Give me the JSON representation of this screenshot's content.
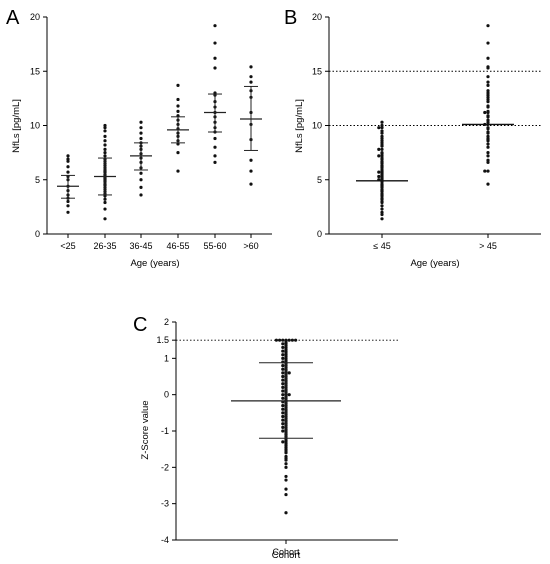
{
  "chart_data": [
    {
      "panel": "A",
      "type": "scatter",
      "xlabel": "Age (years)",
      "ylabel": "NfLs [pg/mL]",
      "ylim": [
        0,
        20
      ],
      "yticks": [
        0,
        5,
        10,
        15,
        20
      ],
      "grid": false,
      "categories": [
        "<25",
        "26-35",
        "36-45",
        "46-55",
        "55-60",
        ">60"
      ],
      "summary": [
        {
          "mean": 4.4,
          "sd_low": 3.3,
          "sd_high": 5.4
        },
        {
          "mean": 5.3,
          "sd_low": 3.6,
          "sd_high": 7.0
        },
        {
          "mean": 7.2,
          "sd_low": 5.9,
          "sd_high": 8.4
        },
        {
          "mean": 9.6,
          "sd_low": 8.4,
          "sd_high": 10.8
        },
        {
          "mean": 11.2,
          "sd_low": 9.4,
          "sd_high": 12.9
        },
        {
          "mean": 10.6,
          "sd_low": 7.7,
          "sd_high": 13.6
        }
      ],
      "points": [
        [
          2.0,
          2.6,
          3.0,
          3.3,
          3.6,
          4.0,
          4.4,
          5.0,
          5.3,
          5.7,
          6.2,
          6.7,
          6.9,
          7.2
        ],
        [
          1.4,
          2.3,
          2.9,
          3.2,
          3.5,
          3.7,
          3.9,
          4.1,
          4.3,
          4.5,
          4.6,
          4.8,
          4.9,
          5.0,
          5.1,
          5.2,
          5.3,
          5.4,
          5.5,
          5.7,
          5.8,
          5.9,
          6.1,
          6.3,
          6.5,
          6.7,
          6.9,
          7.2,
          7.5,
          7.8,
          8.2,
          8.6,
          9.0,
          9.5,
          9.8,
          10.0
        ],
        [
          3.6,
          4.3,
          5.0,
          5.6,
          6.1,
          6.6,
          7.0,
          7.4,
          7.8,
          8.1,
          8.4,
          8.8,
          9.3,
          9.8,
          10.3
        ],
        [
          5.8,
          7.5,
          8.3,
          8.6,
          9.0,
          9.3,
          9.7,
          10.1,
          10.5,
          10.9,
          11.3,
          11.8,
          12.4,
          13.7
        ],
        [
          6.6,
          7.2,
          8.0,
          8.8,
          9.4,
          9.8,
          10.3,
          10.8,
          11.2,
          11.7,
          12.2,
          12.8,
          13.0,
          15.3,
          16.2,
          17.6,
          19.2
        ],
        [
          4.6,
          5.8,
          6.8,
          8.7,
          10.1,
          11.2,
          12.6,
          13.2,
          14.0,
          14.5,
          15.4
        ]
      ]
    },
    {
      "panel": "B",
      "type": "scatter",
      "xlabel": "Age (years)",
      "ylabel": "NfLs [pg/mL]",
      "ylim": [
        0,
        20
      ],
      "yticks": [
        0,
        5,
        10,
        15,
        20
      ],
      "grid": false,
      "reference_lines": [
        10,
        15
      ],
      "categories": [
        "≤ 45",
        "> 45"
      ],
      "medians": [
        4.9,
        10.1
      ],
      "points": [
        [
          1.4,
          1.8,
          2.0,
          2.3,
          2.6,
          2.9,
          3.0,
          3.2,
          3.3,
          3.5,
          3.6,
          3.7,
          3.9,
          4.0,
          4.1,
          4.3,
          4.4,
          4.5,
          4.6,
          4.8,
          4.9,
          5.0,
          5.0,
          5.1,
          5.2,
          5.3,
          5.3,
          5.4,
          5.5,
          5.6,
          5.7,
          5.7,
          5.8,
          5.9,
          6.1,
          6.2,
          6.3,
          6.5,
          6.6,
          6.7,
          6.9,
          7.0,
          7.2,
          7.2,
          7.4,
          7.5,
          7.8,
          7.8,
          8.1,
          8.2,
          8.4,
          8.6,
          8.8,
          9.0,
          9.3,
          9.5,
          9.8,
          9.8,
          10.0,
          10.3
        ],
        [
          4.6,
          5.8,
          5.8,
          6.6,
          6.8,
          7.2,
          7.5,
          8.0,
          8.3,
          8.6,
          8.7,
          8.8,
          9.0,
          9.3,
          9.4,
          9.7,
          9.8,
          10.1,
          10.1,
          10.3,
          10.5,
          10.8,
          10.9,
          11.2,
          11.2,
          11.3,
          11.7,
          11.8,
          12.2,
          12.4,
          12.6,
          12.8,
          13.0,
          13.2,
          13.7,
          14.0,
          14.5,
          15.3,
          15.4,
          16.2,
          17.6,
          19.2
        ]
      ]
    },
    {
      "panel": "C",
      "type": "scatter",
      "xlabel": "Cohort",
      "ylabel": "Z-Score value",
      "ylim": [
        -4,
        2
      ],
      "yticks": [
        -4,
        -3,
        -2,
        -1,
        0,
        1,
        1.5,
        2
      ],
      "grid": false,
      "reference_lines": [
        1.5
      ],
      "categories": [
        "Cohort"
      ],
      "summary": {
        "mean": -0.17,
        "sd_low": -1.2,
        "sd_high": 0.88
      },
      "points": [
        -3.25,
        -2.75,
        -2.6,
        -2.35,
        -2.25,
        -2.0,
        -1.9,
        -1.8,
        -1.75,
        -1.7,
        -1.6,
        -1.55,
        -1.5,
        -1.45,
        -1.4,
        -1.35,
        -1.3,
        -1.25,
        -1.2,
        -1.15,
        -1.1,
        -1.05,
        -1.0,
        -0.95,
        -0.9,
        -0.85,
        -0.8,
        -0.75,
        -0.7,
        -0.65,
        -0.6,
        -0.55,
        -0.5,
        -0.45,
        -0.4,
        -0.35,
        -0.3,
        -0.25,
        -0.2,
        -0.15,
        -0.1,
        -0.05,
        0.0,
        0.05,
        0.1,
        0.15,
        0.2,
        0.25,
        0.3,
        0.35,
        0.4,
        0.45,
        0.5,
        0.55,
        0.6,
        0.65,
        0.7,
        0.75,
        0.8,
        0.85,
        0.9,
        0.95,
        1.0,
        1.05,
        1.1,
        1.15,
        1.2,
        1.25,
        1.3,
        1.35,
        1.4,
        1.45,
        1.5,
        -1.3,
        -1.0,
        -0.8,
        -0.6,
        -0.4,
        -0.2,
        0.0,
        0.2,
        0.4,
        0.6,
        0.8,
        1.0,
        1.2,
        1.4,
        1.5,
        -0.9,
        -0.5,
        -0.3,
        -0.1,
        0.1,
        0.3,
        0.5,
        0.7,
        0.9,
        1.1,
        1.3,
        1.5,
        -0.7,
        0.0,
        0.6,
        1.5,
        1.5,
        1.5,
        1.5
      ]
    }
  ]
}
